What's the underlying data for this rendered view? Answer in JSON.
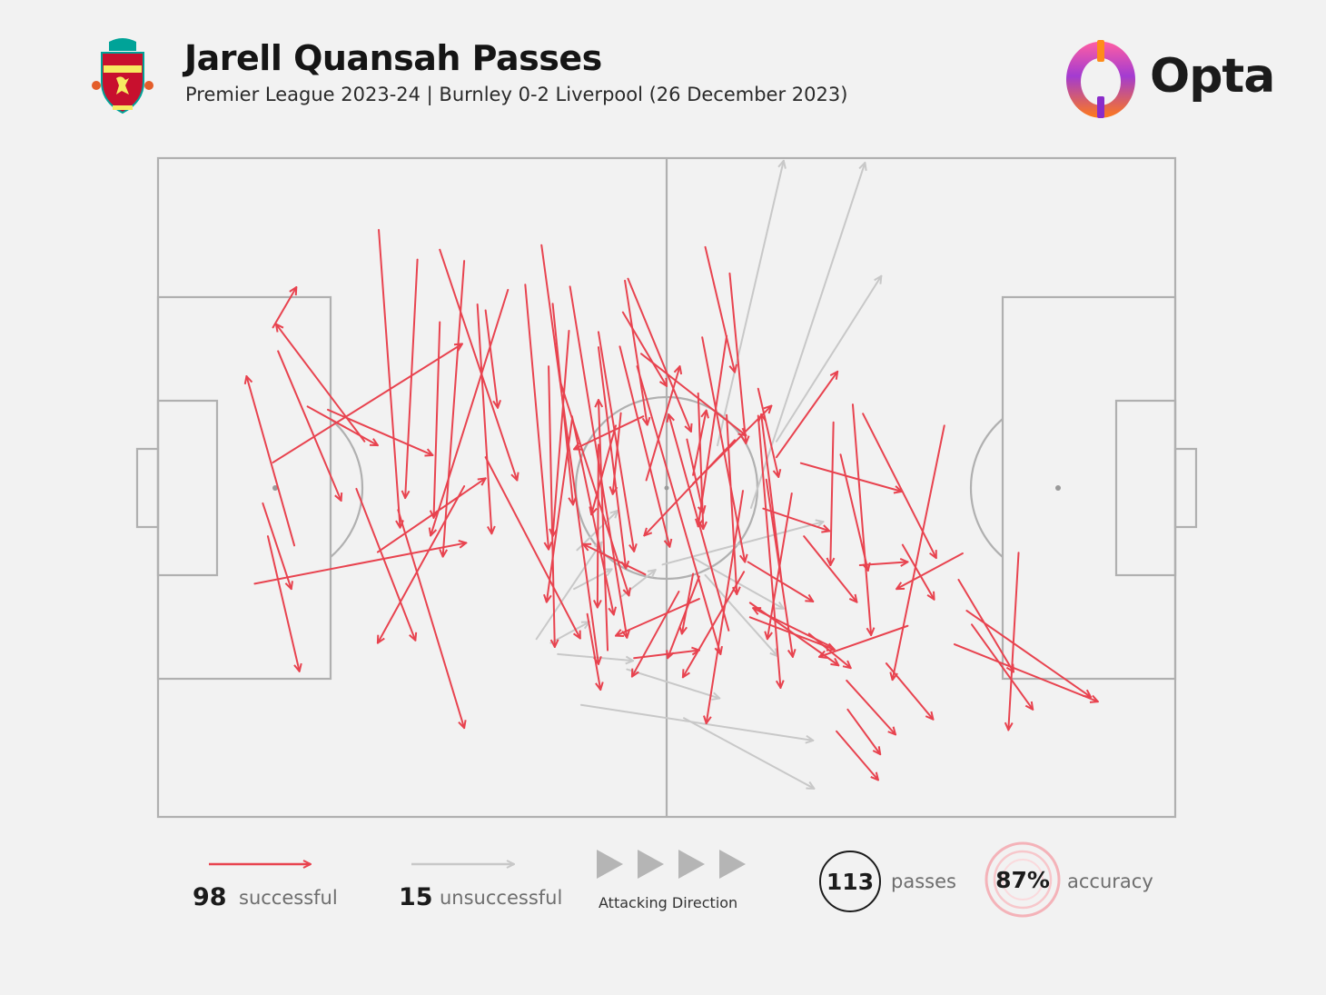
{
  "header": {
    "title": "Jarell Quansah Passes",
    "subtitle": "Premier League 2023-24 | Burnley 0-2 Liverpool (26 December 2023)",
    "crest_icon": "liverpool-crest-icon",
    "brand": "Opta"
  },
  "colors": {
    "background": "#f2f2f2",
    "successful": "#e8434f",
    "unsuccessful": "#c8c8c8",
    "pitch_lines": "#b0b0b0",
    "accuracy_ring": "#f4b3b9"
  },
  "legend": {
    "successful_count": "98",
    "successful_label": "successful",
    "unsuccessful_count": "15",
    "unsuccessful_label": "unsuccessful",
    "direction_label": "Attacking Direction",
    "passes_value": "113",
    "passes_label": "passes",
    "accuracy_value": "87%",
    "accuracy_label": "accuracy"
  },
  "chart_data": {
    "type": "pass-map",
    "pitch": {
      "x_range": [
        0,
        100
      ],
      "y_range": [
        0,
        100
      ],
      "attacking_direction": "left-to-right"
    },
    "grid": false,
    "successful": [
      [
        14.7,
        37.7,
        21.6,
        43.6
      ],
      [
        16.7,
        38.2,
        27.0,
        45.1
      ],
      [
        10.3,
        52.4,
        13.1,
        65.4
      ],
      [
        23.6,
        53.4,
        30.1,
        86.5
      ],
      [
        19.5,
        50.2,
        25.3,
        73.2
      ],
      [
        20.3,
        43.0,
        11.6,
        25.2
      ],
      [
        10.8,
        57.4,
        13.9,
        77.9
      ],
      [
        13.4,
        58.8,
        8.7,
        33.1
      ],
      [
        11.3,
        25.7,
        13.6,
        19.6
      ],
      [
        9.5,
        64.6,
        30.3,
        58.4
      ],
      [
        11.8,
        29.3,
        18.0,
        52.0
      ],
      [
        11.3,
        46.2,
        29.9,
        28.2
      ],
      [
        21.7,
        10.9,
        23.8,
        56.1
      ],
      [
        25.5,
        15.4,
        24.3,
        51.6
      ],
      [
        30.1,
        15.6,
        28.0,
        60.5
      ],
      [
        30.1,
        49.8,
        21.6,
        73.6
      ],
      [
        27.7,
        24.9,
        27.1,
        54.6
      ],
      [
        21.6,
        59.8,
        32.2,
        48.6
      ],
      [
        27.7,
        13.9,
        35.3,
        48.9
      ],
      [
        32.2,
        23.1,
        33.4,
        37.9
      ],
      [
        42.2,
        69.2,
        43.5,
        80.7
      ],
      [
        34.4,
        20.0,
        26.8,
        57.3
      ],
      [
        31.4,
        22.2,
        32.8,
        57.0
      ],
      [
        40.7,
        39.7,
        38.2,
        67.4
      ],
      [
        39.5,
        33.7,
        46.3,
        66.4
      ],
      [
        32.2,
        45.4,
        41.5,
        72.9
      ],
      [
        36.1,
        19.2,
        38.4,
        59.4
      ],
      [
        40.4,
        26.2,
        38.8,
        57.4
      ],
      [
        38.8,
        22.1,
        40.8,
        52.6
      ],
      [
        38.4,
        31.6,
        39.0,
        74.2
      ],
      [
        37.7,
        13.2,
        43.3,
        76.8
      ],
      [
        40.5,
        19.5,
        46.1,
        72.8
      ],
      [
        40.7,
        39.2,
        44.8,
        69.3
      ],
      [
        43.3,
        28.7,
        46.0,
        62.3
      ],
      [
        43.3,
        43.5,
        43.2,
        68.2
      ],
      [
        43.3,
        26.4,
        46.8,
        59.7
      ],
      [
        47.1,
        31.6,
        55.3,
        75.3
      ],
      [
        48.0,
        48.9,
        51.3,
        31.6
      ],
      [
        47.5,
        29.7,
        57.8,
        42.1
      ],
      [
        47.9,
        63.2,
        41.8,
        58.6
      ],
      [
        47.7,
        39.2,
        40.9,
        44.2
      ],
      [
        45.5,
        38.7,
        44.7,
        51.0
      ],
      [
        45.0,
        40.6,
        42.6,
        54.1
      ],
      [
        45.4,
        28.6,
        50.3,
        59.0
      ],
      [
        53.1,
        35.7,
        53.6,
        56.3
      ],
      [
        52.6,
        49.4,
        60.3,
        37.6
      ],
      [
        52.0,
        42.7,
        53.6,
        53.9
      ],
      [
        52.6,
        48.1,
        53.9,
        38.3
      ],
      [
        53.5,
        27.2,
        57.7,
        61.3
      ],
      [
        55.9,
        39.0,
        56.9,
        66.2
      ],
      [
        55.9,
        27.0,
        53.1,
        55.9
      ],
      [
        56.7,
        42.8,
        47.8,
        57.3
      ],
      [
        45.7,
        23.4,
        50.0,
        34.6
      ],
      [
        45.9,
        18.6,
        48.1,
        40.5
      ],
      [
        46.2,
        18.3,
        52.4,
        41.5
      ],
      [
        53.8,
        13.5,
        56.7,
        32.5
      ],
      [
        56.2,
        17.5,
        57.8,
        43.3
      ],
      [
        59.5,
        53.2,
        66.0,
        56.6
      ],
      [
        59.0,
        35.0,
        61.0,
        48.4
      ],
      [
        56.1,
        71.7,
        50.2,
        38.9
      ],
      [
        53.2,
        63.5,
        50.1,
        75.9
      ],
      [
        53.2,
        66.9,
        45.0,
        72.5
      ],
      [
        46.8,
        75.9,
        53.2,
        74.7
      ],
      [
        44.2,
        74.7,
        43.3,
        36.7
      ],
      [
        52.6,
        63.1,
        51.5,
        72.2
      ],
      [
        51.2,
        65.8,
        46.6,
        78.7
      ],
      [
        58.2,
        67.5,
        66.9,
        77.0
      ],
      [
        58.0,
        61.3,
        64.4,
        67.3
      ],
      [
        57.6,
        62.8,
        51.6,
        78.8
      ],
      [
        61.3,
        64.2,
        59.3,
        38.9
      ],
      [
        60.8,
        45.4,
        66.8,
        32.4
      ],
      [
        62.3,
        50.9,
        59.9,
        73.0
      ],
      [
        63.5,
        57.4,
        68.7,
        67.4
      ],
      [
        66.4,
        40.1,
        66.1,
        61.8
      ],
      [
        63.2,
        46.3,
        73.1,
        50.6
      ],
      [
        67.1,
        45.0,
        69.8,
        62.6
      ],
      [
        69.3,
        38.8,
        76.5,
        60.7
      ],
      [
        68.3,
        37.4,
        70.1,
        72.4
      ],
      [
        69.0,
        61.8,
        73.7,
        61.3
      ],
      [
        73.2,
        58.7,
        76.3,
        67.0
      ],
      [
        73.7,
        71.0,
        65.0,
        75.7
      ],
      [
        77.3,
        40.6,
        72.2,
        79.2
      ],
      [
        79.1,
        60.0,
        72.6,
        65.4
      ],
      [
        80.0,
        70.8,
        86.0,
        83.7
      ],
      [
        84.6,
        59.9,
        83.6,
        86.8
      ],
      [
        78.7,
        64.0,
        84.1,
        78.0
      ],
      [
        78.3,
        73.8,
        92.4,
        82.5
      ],
      [
        79.5,
        68.7,
        91.7,
        81.8
      ],
      [
        71.6,
        76.7,
        76.2,
        85.2
      ],
      [
        67.7,
        79.3,
        72.5,
        87.5
      ],
      [
        64.0,
        72.2,
        68.1,
        77.4
      ],
      [
        66.7,
        87.0,
        70.8,
        94.4
      ],
      [
        67.8,
        83.7,
        71.0,
        90.5
      ],
      [
        66.1,
        74.1,
        58.5,
        68.3
      ],
      [
        58.2,
        69.7,
        66.5,
        74.6
      ],
      [
        59.0,
        39.1,
        61.2,
        80.4
      ],
      [
        57.5,
        50.5,
        53.9,
        85.8
      ],
      [
        59.8,
        48.8,
        62.4,
        75.7
      ]
    ],
    "unsuccessful": [
      [
        55.0,
        43.6,
        61.5,
        0.4
      ],
      [
        58.3,
        53.1,
        69.5,
        0.7
      ],
      [
        60.8,
        43.0,
        71.1,
        17.9
      ],
      [
        53.8,
        63.3,
        60.9,
        75.6
      ],
      [
        52.4,
        60.5,
        61.5,
        68.4
      ],
      [
        49.6,
        61.7,
        65.4,
        55.2
      ],
      [
        45.6,
        66.5,
        48.9,
        62.5
      ],
      [
        41.6,
        83.0,
        64.4,
        88.4
      ],
      [
        46.1,
        77.6,
        55.2,
        82.0
      ],
      [
        51.7,
        85.0,
        64.5,
        95.7
      ],
      [
        39.3,
        75.3,
        46.7,
        76.3
      ],
      [
        38.6,
        73.6,
        42.4,
        70.4
      ],
      [
        41.2,
        59.5,
        45.2,
        53.5
      ],
      [
        40.9,
        65.4,
        44.6,
        62.4
      ],
      [
        37.2,
        73.0,
        43.6,
        58.3
      ]
    ]
  }
}
